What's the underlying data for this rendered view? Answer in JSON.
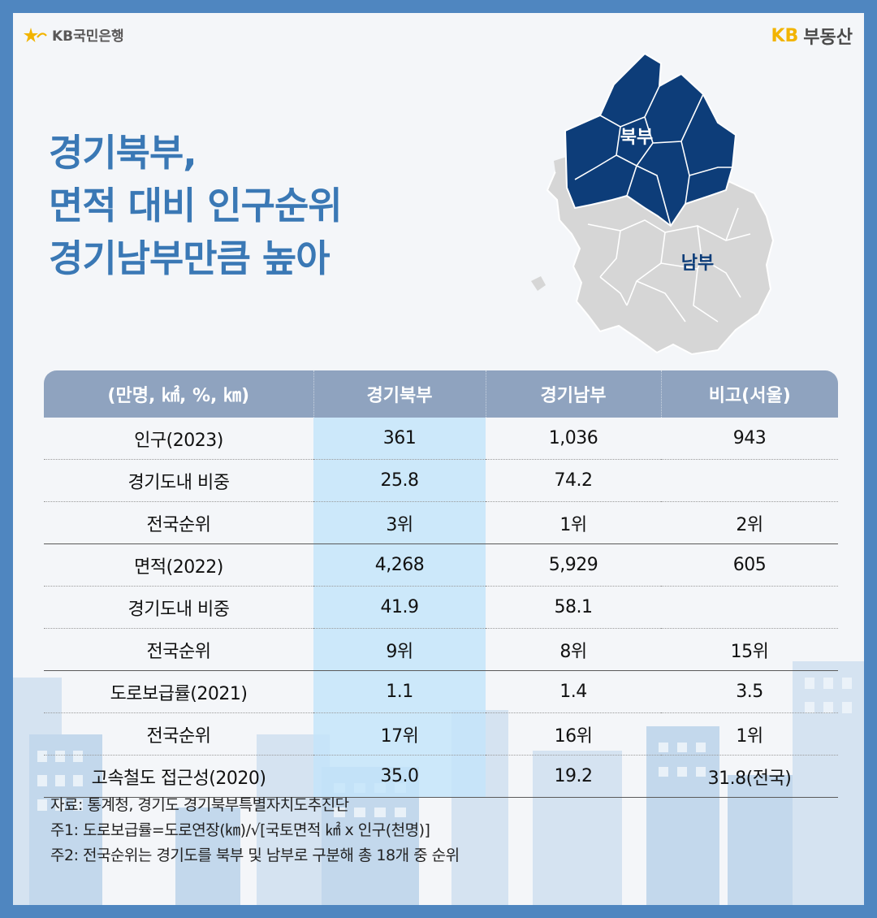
{
  "brand": {
    "bank_name": "KB국민은행",
    "realestate_kb": "KB",
    "realestate_name": "부동산"
  },
  "title": [
    "경기북부,",
    "면적 대비 인구순위",
    "경기남부만큼 높아"
  ],
  "map": {
    "north_label": "북부",
    "south_label": "남부",
    "colors": {
      "north": "#0d3d79",
      "south": "#d6d6d6"
    }
  },
  "table": {
    "headers": [
      "(만명, ㎢, %, ㎞)",
      "경기북부",
      "경기남부",
      "비고(서울)"
    ],
    "rows": [
      [
        "인구(2023)",
        "361",
        "1,036",
        "943"
      ],
      [
        "경기도내 비중",
        "25.8",
        "74.2",
        ""
      ],
      [
        "전국순위",
        "3위",
        "1위",
        "2위"
      ],
      [
        "면적(2022)",
        "4,268",
        "5,929",
        "605"
      ],
      [
        "경기도내 비중",
        "41.9",
        "58.1",
        ""
      ],
      [
        "전국순위",
        "9위",
        "8위",
        "15위"
      ],
      [
        "도로보급률(2021)",
        "1.1",
        "1.4",
        "3.5"
      ],
      [
        "전국순위",
        "17위",
        "16위",
        "1위"
      ],
      [
        "고속철도 접근성(2020)",
        "35.0",
        "19.2",
        "31.8(전국)"
      ]
    ]
  },
  "notes": [
    "자료: 통계청, 경기도 경기북부특별자치도추진단",
    "주1: 도로보급률=도로연장(㎞)/√[국토면적 ㎢ x 인구(천명)]",
    "주2: 전국순위는 경기도를 북부 및 남부로 구분해 총 18개 중 순위"
  ],
  "colors": {
    "title": "#3a78b5",
    "frame": "#4f86c0",
    "header": "#8fa3bf",
    "highlight": "#c3e4fa"
  }
}
